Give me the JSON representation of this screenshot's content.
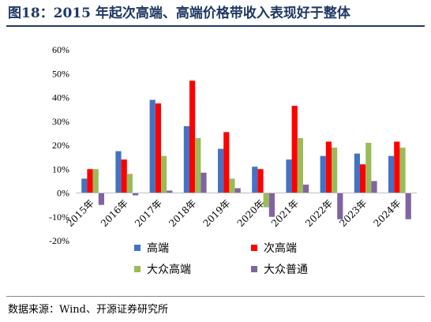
{
  "title": "图18：2015 年起次高端、高端价格带收入表现好于整体",
  "source": "数据来源：Wind、开源证券研究所",
  "colors": {
    "title": "#1f3864",
    "series": [
      "#4472c4",
      "#ff0000",
      "#9bbb59",
      "#8064a2"
    ]
  },
  "chart_data": {
    "type": "bar",
    "categories": [
      "2015年",
      "2016年",
      "2017年",
      "2018年",
      "2019年",
      "2020年",
      "2021年",
      "2022年",
      "2023年",
      "2024年"
    ],
    "series": [
      {
        "name": "高端",
        "values": [
          6,
          17.5,
          39,
          28,
          18.5,
          11,
          14,
          15.5,
          16.5,
          15.5
        ]
      },
      {
        "name": "次高端",
        "values": [
          10,
          14,
          37.5,
          47,
          25.5,
          10,
          36.5,
          21.5,
          12,
          21.5
        ]
      },
      {
        "name": "大众高端",
        "values": [
          10,
          8,
          15.5,
          23,
          6,
          -6,
          23,
          19,
          21,
          19
        ]
      },
      {
        "name": "大众普通",
        "values": [
          -5,
          -1,
          1,
          8.5,
          2,
          -10,
          3.5,
          -11,
          5,
          -11
        ]
      }
    ],
    "ylim": [
      -20,
      60
    ],
    "yticks": [
      "-20%",
      "-10%",
      "0%",
      "10%",
      "20%",
      "30%",
      "40%",
      "50%",
      "60%"
    ],
    "ytick_values": [
      -20,
      -10,
      0,
      10,
      20,
      30,
      40,
      50,
      60
    ],
    "legend_position": "bottom",
    "grid": false
  }
}
